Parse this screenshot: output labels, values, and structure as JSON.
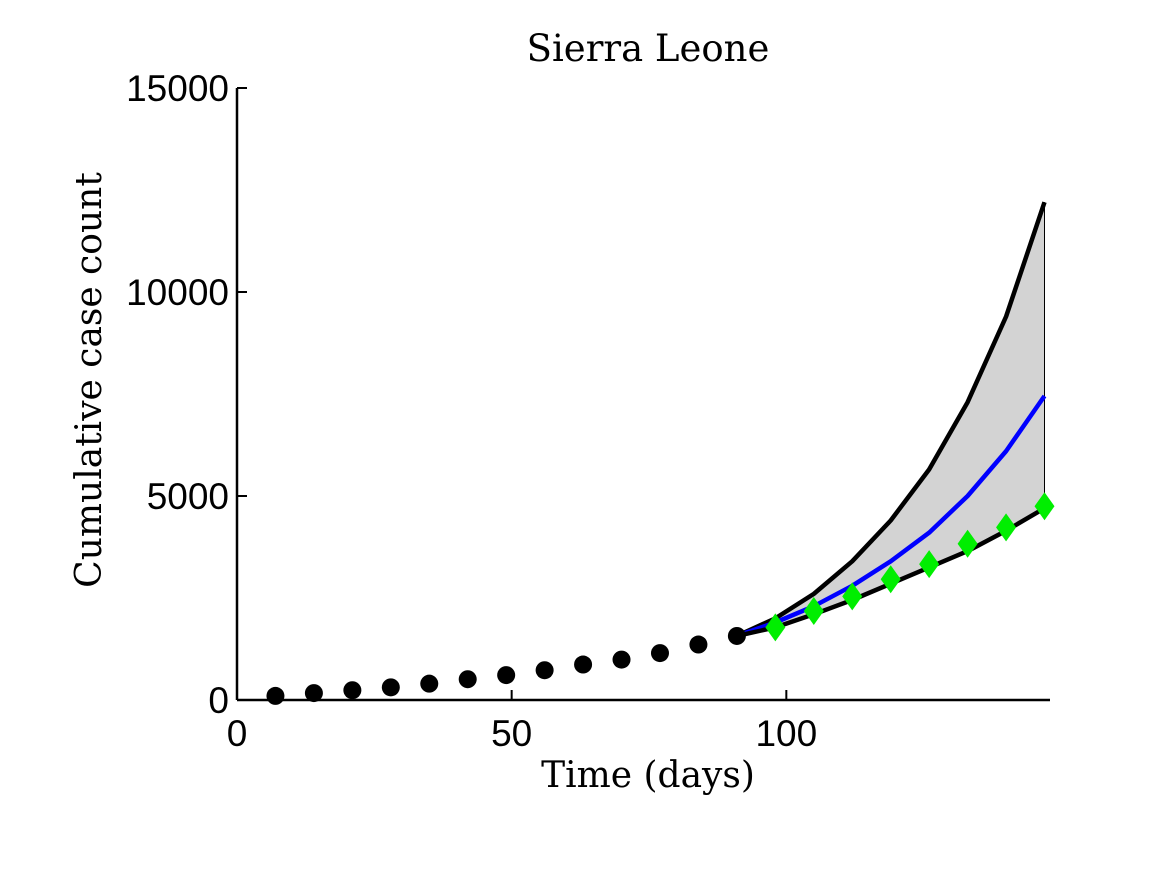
{
  "chart_data": {
    "type": "line",
    "title": "Sierra Leone",
    "xlabel": "Time (days)",
    "ylabel": "Cumulative case count",
    "xlim": [
      0,
      148
    ],
    "ylim": [
      0,
      15000
    ],
    "xticks": [
      0,
      50,
      100
    ],
    "yticks": [
      0,
      5000,
      10000,
      15000
    ],
    "grid": false,
    "series": [
      {
        "kind": "observed-points",
        "marker": "circle",
        "color": "#000000",
        "x": [
          7,
          14,
          21,
          28,
          35,
          42,
          49,
          56,
          63,
          70,
          77,
          84,
          91
        ],
        "y": [
          100,
          170,
          240,
          310,
          400,
          510,
          610,
          730,
          870,
          990,
          1150,
          1360,
          1570
        ]
      },
      {
        "kind": "validation-points",
        "marker": "diamond",
        "color": "#00ee00",
        "x": [
          98,
          105,
          112,
          119,
          126,
          133,
          140,
          147
        ],
        "y": [
          1780,
          2180,
          2540,
          2960,
          3330,
          3830,
          4230,
          4750
        ]
      },
      {
        "kind": "forecast-mean",
        "color": "#0000ff",
        "x": [
          91,
          98,
          105,
          112,
          119,
          126,
          133,
          140,
          147
        ],
        "y": [
          1570,
          1900,
          2300,
          2800,
          3400,
          4100,
          5000,
          6100,
          7450
        ]
      },
      {
        "kind": "forecast-upper",
        "color": "#000000",
        "x": [
          91,
          98,
          105,
          112,
          119,
          126,
          133,
          140,
          147
        ],
        "y": [
          1570,
          2000,
          2600,
          3400,
          4400,
          5650,
          7300,
          9400,
          12200
        ]
      },
      {
        "kind": "forecast-lower",
        "color": "#000000",
        "x": [
          91,
          98,
          105,
          112,
          119,
          126,
          133,
          140,
          147
        ],
        "y": [
          1570,
          1780,
          2100,
          2450,
          2850,
          3250,
          3650,
          4150,
          4700
        ]
      }
    ],
    "band_color": "#d3d3d3"
  }
}
